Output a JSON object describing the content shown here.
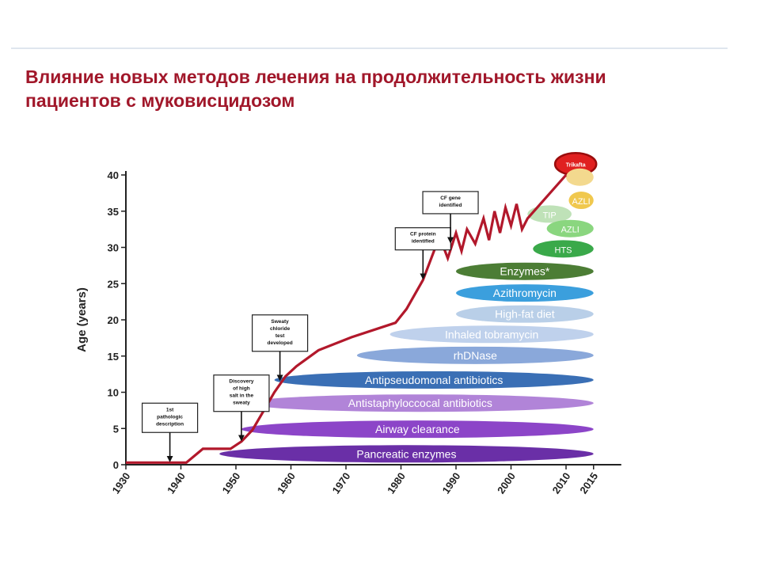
{
  "slide": {
    "title_line1": "Влияние новых методов лечения на продолжительность жизни",
    "title_line2": "пациентов с муковисцидозом"
  },
  "chart_data": {
    "type": "line",
    "ylabel": "Age (years)",
    "xlabel": "",
    "xlim": [
      1930,
      2015
    ],
    "ylim": [
      0,
      40
    ],
    "x_ticks": [
      "1930",
      "1940",
      "1950",
      "1960",
      "1970",
      "1980",
      "1990",
      "2000",
      "2010",
      "2015"
    ],
    "y_ticks": [
      "0",
      "5",
      "10",
      "15",
      "20",
      "25",
      "30",
      "35",
      "40"
    ],
    "grid": false,
    "series": [
      {
        "color": "#b2182b",
        "x": [
          1930,
          1941,
          1944,
          1947,
          1949,
          1951,
          1953,
          1955,
          1957,
          1959,
          1961,
          1965,
          1971,
          1979,
          1981,
          1984,
          1987,
          1988.5,
          1990,
          1991,
          1992,
          1993.5,
          1995,
          1996,
          1997,
          1998,
          1999,
          2000,
          2001,
          2002,
          2003,
          2010
        ],
        "y": [
          0.3,
          0.3,
          2.2,
          2.2,
          2.2,
          3.2,
          4.8,
          7.4,
          10.0,
          12.2,
          13.6,
          15.8,
          17.6,
          19.6,
          21.5,
          25.5,
          31.5,
          28.5,
          32.0,
          29.5,
          32.5,
          30.5,
          34.0,
          31.0,
          35.0,
          32.0,
          35.5,
          33.0,
          36.0,
          32.5,
          34.0,
          40.0
        ]
      }
    ],
    "annotations": [
      {
        "lines": [
          "1st",
          "pathologic",
          "description"
        ],
        "year": 1938,
        "value": 0.3
      },
      {
        "lines": [
          "Discovery",
          "of high",
          "salt in the",
          "sweaty"
        ],
        "year": 1951,
        "value": 3.2
      },
      {
        "lines": [
          "Sweaty",
          "chloride",
          "test",
          "developed"
        ],
        "year": 1958,
        "value": 11.5
      },
      {
        "lines": [
          "CF protein",
          "identified"
        ],
        "year": 1984,
        "value": 25.5
      },
      {
        "lines": [
          "CF gene",
          "identified"
        ],
        "year": 1989,
        "value": 30.5
      }
    ],
    "therapies": [
      {
        "label": "Trikafta",
        "start": 2008,
        "end": 2015.5,
        "value": 41.5,
        "color": "#e02020",
        "stroke": "#9a0c0c"
      },
      {
        "label": "",
        "start": 2010,
        "end": 2015,
        "value": 39.7,
        "color": "#f3d98e"
      },
      {
        "label": "AZLI",
        "start": 2010.5,
        "end": 2015,
        "value": 36.5,
        "color": "#f0c84e"
      },
      {
        "label": "TIP",
        "start": 2003,
        "end": 2011,
        "value": 34.6,
        "color": "#bfe2b8"
      },
      {
        "label": "AZLI",
        "start": 2006.5,
        "end": 2015,
        "value": 32.6,
        "color": "#8ad67f"
      },
      {
        "label": "HTS",
        "start": 2004,
        "end": 2015,
        "value": 29.8,
        "color": "#3aa94a"
      },
      {
        "label": "Enzymes*",
        "start": 1990,
        "end": 2015,
        "value": 26.7,
        "color": "#4c7d35"
      },
      {
        "label": "Azithromycin",
        "start": 1990,
        "end": 2015,
        "value": 23.7,
        "color": "#3b9fdd"
      },
      {
        "label": "High-fat diet",
        "start": 1990,
        "end": 2015,
        "value": 20.8,
        "color": "#b9cfe8"
      },
      {
        "label": "Inhaled tobramycin",
        "start": 1978,
        "end": 2015,
        "value": 18.0,
        "color": "#bfd1ec"
      },
      {
        "label": "rhDNase",
        "start": 1972,
        "end": 2015,
        "value": 15.1,
        "color": "#8aa8da"
      },
      {
        "label": "Antipseudomonal antibiotics",
        "start": 1957,
        "end": 2015,
        "value": 11.7,
        "color": "#3a6fb5"
      },
      {
        "label": "Antistaphyloccocal antibiotics",
        "start": 1952,
        "end": 2015,
        "value": 8.5,
        "color": "#b184d8"
      },
      {
        "label": "Airway clearance",
        "start": 1951,
        "end": 2015,
        "value": 4.9,
        "color": "#8c45c8"
      },
      {
        "label": "Pancreatic enzymes",
        "start": 1947,
        "end": 2015,
        "value": 1.5,
        "color": "#6a2fa7"
      }
    ]
  }
}
